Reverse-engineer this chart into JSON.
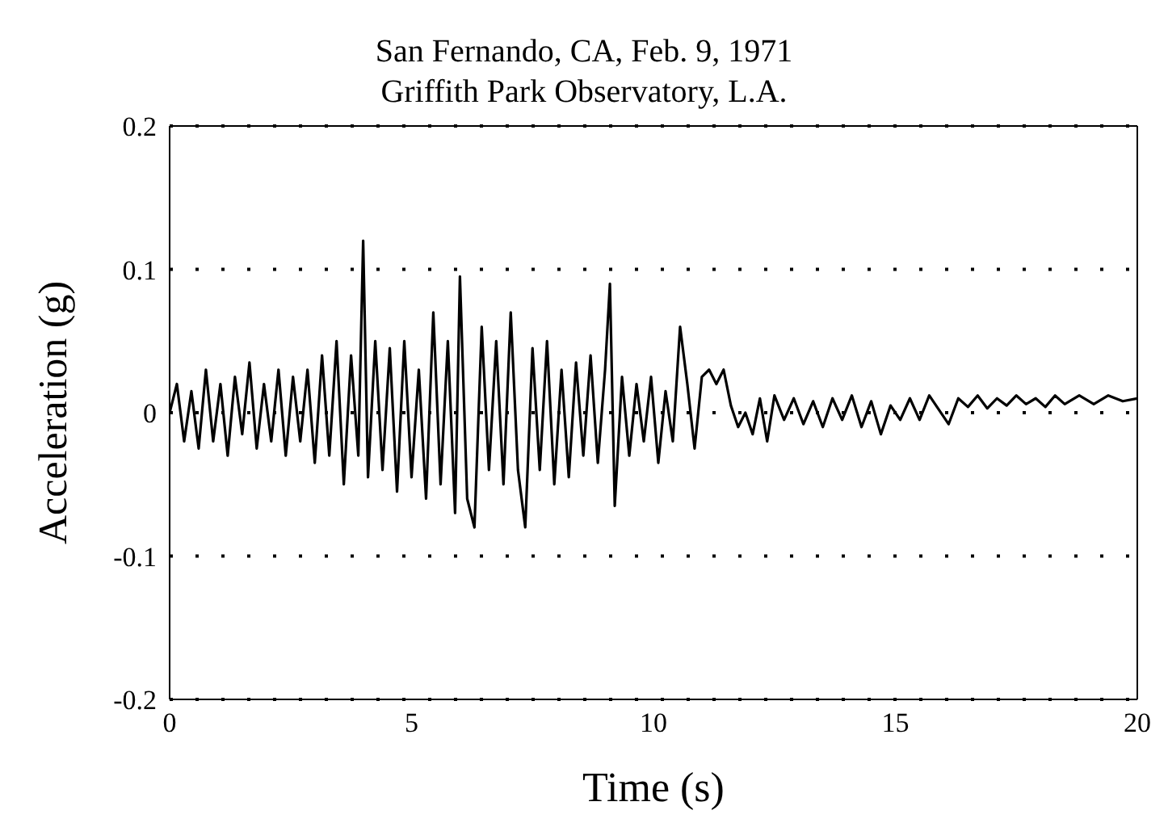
{
  "chart_data": {
    "type": "line",
    "title": "San Fernando, CA, Feb. 9, 1971",
    "subtitle": "Griffith Park Observatory, L.A.",
    "xlabel": "Time (s)",
    "ylabel": "Acceleration (g)",
    "xlim": [
      0,
      20
    ],
    "xticks": [
      0,
      5,
      10,
      15,
      20
    ],
    "ylim": [
      -0.2,
      0.2
    ],
    "yticks": [
      -0.2,
      -0.1,
      0,
      0.1,
      0.2
    ],
    "grid": "y",
    "marker": "none",
    "line_style": "solid",
    "series": [
      {
        "color": "#000000",
        "x": [
          0,
          0.15,
          0.3,
          0.45,
          0.6,
          0.75,
          0.9,
          1.05,
          1.2,
          1.35,
          1.5,
          1.65,
          1.8,
          1.95,
          2.1,
          2.25,
          2.4,
          2.55,
          2.7,
          2.85,
          3.0,
          3.15,
          3.3,
          3.45,
          3.6,
          3.75,
          3.9,
          4.0,
          4.1,
          4.25,
          4.4,
          4.55,
          4.7,
          4.85,
          5.0,
          5.15,
          5.3,
          5.45,
          5.6,
          5.75,
          5.9,
          6.0,
          6.15,
          6.3,
          6.45,
          6.6,
          6.75,
          6.9,
          7.05,
          7.2,
          7.35,
          7.5,
          7.65,
          7.8,
          7.95,
          8.1,
          8.25,
          8.4,
          8.55,
          8.7,
          8.85,
          9.0,
          9.1,
          9.2,
          9.35,
          9.5,
          9.65,
          9.8,
          9.95,
          10.1,
          10.25,
          10.4,
          10.55,
          10.7,
          10.85,
          11.0,
          11.15,
          11.3,
          11.45,
          11.6,
          11.75,
          11.9,
          12.05,
          12.2,
          12.35,
          12.5,
          12.7,
          12.9,
          13.1,
          13.3,
          13.5,
          13.7,
          13.9,
          14.1,
          14.3,
          14.5,
          14.7,
          14.9,
          15.1,
          15.3,
          15.5,
          15.7,
          15.9,
          16.1,
          16.3,
          16.5,
          16.7,
          16.9,
          17.1,
          17.3,
          17.5,
          17.7,
          17.9,
          18.1,
          18.3,
          18.5,
          18.8,
          19.1,
          19.4,
          19.7,
          20
        ],
        "values": [
          0,
          0.02,
          -0.02,
          0.015,
          -0.025,
          0.03,
          -0.02,
          0.02,
          -0.03,
          0.025,
          -0.015,
          0.035,
          -0.025,
          0.02,
          -0.02,
          0.03,
          -0.03,
          0.025,
          -0.02,
          0.03,
          -0.035,
          0.04,
          -0.03,
          0.05,
          -0.05,
          0.04,
          -0.03,
          0.12,
          -0.045,
          0.05,
          -0.04,
          0.045,
          -0.055,
          0.05,
          -0.045,
          0.03,
          -0.06,
          0.07,
          -0.05,
          0.05,
          -0.07,
          0.095,
          -0.06,
          -0.08,
          0.06,
          -0.04,
          0.05,
          -0.05,
          0.07,
          -0.04,
          -0.08,
          0.045,
          -0.04,
          0.05,
          -0.05,
          0.03,
          -0.045,
          0.035,
          -0.03,
          0.04,
          -0.035,
          0.03,
          0.09,
          -0.065,
          0.025,
          -0.03,
          0.02,
          -0.02,
          0.025,
          -0.035,
          0.015,
          -0.02,
          0.06,
          0.02,
          -0.025,
          0.025,
          0.03,
          0.02,
          0.03,
          0.005,
          -0.01,
          0,
          -0.015,
          0.01,
          -0.02,
          0.012,
          -0.005,
          0.01,
          -0.008,
          0.008,
          -0.01,
          0.01,
          -0.005,
          0.012,
          -0.01,
          0.008,
          -0.015,
          0.005,
          -0.005,
          0.01,
          -0.005,
          0.012,
          0.002,
          -0.008,
          0.01,
          0.004,
          0.012,
          0.003,
          0.01,
          0.005,
          0.012,
          0.006,
          0.01,
          0.004,
          0.012,
          0.006,
          0.012,
          0.006,
          0.012,
          0.008,
          0.01
        ]
      }
    ]
  }
}
